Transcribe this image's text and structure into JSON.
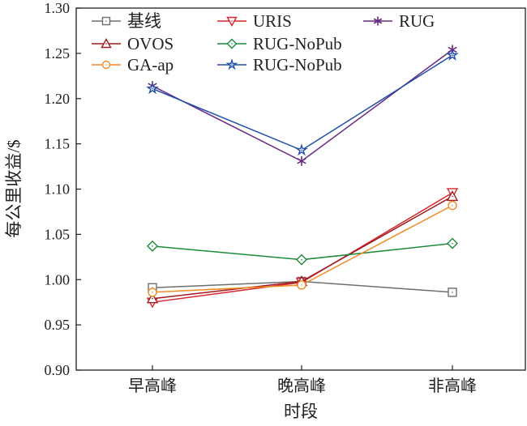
{
  "chart_data": {
    "type": "line",
    "title": "",
    "xlabel": "时段",
    "ylabel": "每公里收益/$",
    "categories": [
      "早高峰",
      "晚高峰",
      "非高峰"
    ],
    "ylim": [
      0.9,
      1.3
    ],
    "yticks": [
      "0.90",
      "0.95",
      "1.00",
      "1.05",
      "1.10",
      "1.15",
      "1.20",
      "1.25",
      "1.30"
    ],
    "grid": false,
    "legend_placement": "top",
    "series": [
      {
        "name": "基线",
        "values": [
          0.991,
          0.998,
          0.986
        ],
        "color": "#6d6e70",
        "marker": "square"
      },
      {
        "name": "URIS",
        "values": [
          0.975,
          0.997,
          1.096
        ],
        "color": "#d7262b",
        "marker": "triangle-down"
      },
      {
        "name": "RUG",
        "values": [
          1.214,
          1.131,
          1.254
        ],
        "color": "#6a2a84",
        "marker": "asterisk"
      },
      {
        "name": "OVOS",
        "values": [
          0.979,
          0.998,
          1.092
        ],
        "color": "#9e1b1f",
        "marker": "triangle-up"
      },
      {
        "name": "RUG-NoPub",
        "values": [
          1.037,
          1.022,
          1.04
        ],
        "color": "#1b8a3a",
        "marker": "diamond"
      },
      {
        "name": "GA-ap",
        "values": [
          0.986,
          0.994,
          1.082
        ],
        "color": "#f08a24",
        "marker": "circle"
      },
      {
        "name": "RUG-NoPub",
        "values": [
          1.211,
          1.143,
          1.248
        ],
        "color": "#1f4fa8",
        "marker": "star"
      }
    ]
  }
}
